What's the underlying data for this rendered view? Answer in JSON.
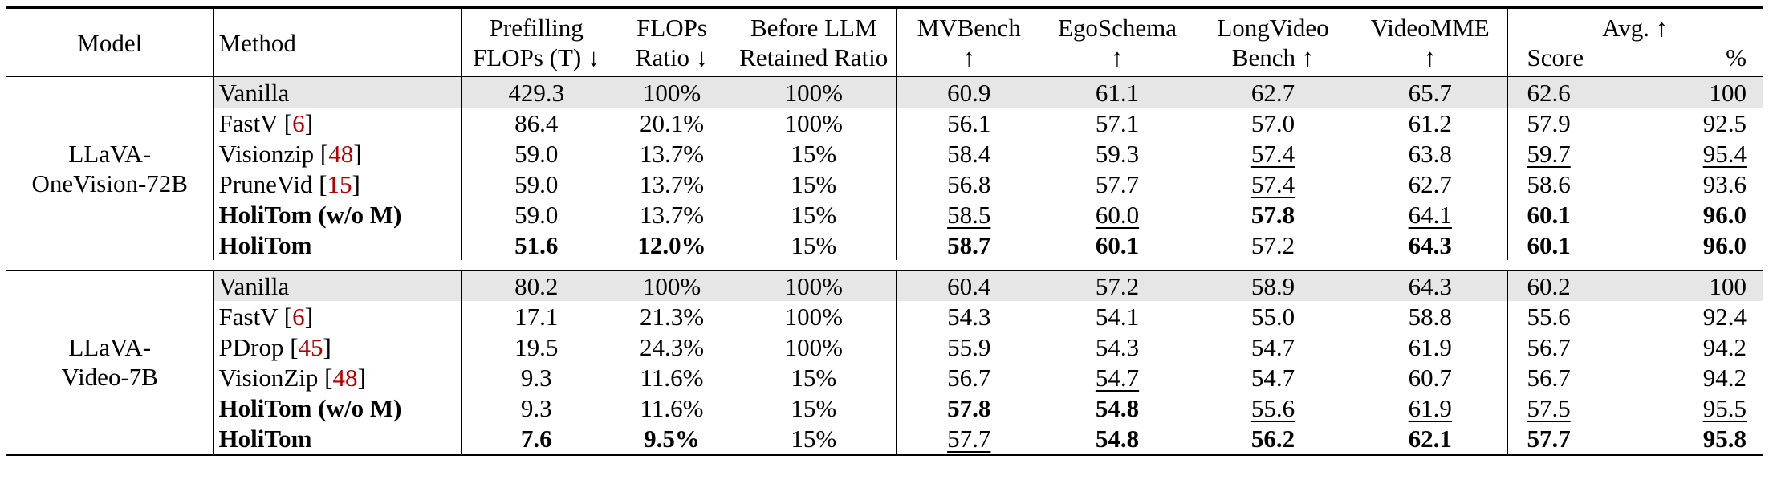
{
  "header": {
    "model": "Model",
    "method": "Method",
    "prefill_1": "Prefilling",
    "prefill_2": "FLOPs (T) ↓",
    "flops_1": "FLOPs",
    "flops_2": "Ratio ↓",
    "retain_1": "Before LLM",
    "retain_2": "Retained Ratio",
    "mv_1": "MVBench",
    "mv_2": "↑",
    "ego_1": "EgoSchema",
    "ego_2": "↑",
    "lv_1": "LongVideo",
    "lv_2": "Bench ↑",
    "vm_1": "VideoMME",
    "vm_2": "↑",
    "avg_1": "Avg. ↑",
    "avg_score": "Score",
    "avg_pct": "%"
  },
  "groups": [
    {
      "model_line1": "LLaVA-",
      "model_line2": "OneVision-72B",
      "rows": [
        {
          "method": "Vanilla",
          "cite": "",
          "prefill": "429.3",
          "flops": "100%",
          "retain": "100%",
          "mv": "60.9",
          "ego": "61.1",
          "lv": "62.7",
          "vm": "65.7",
          "score": "62.6",
          "pct": "100"
        },
        {
          "method": "FastV [",
          "cite": "6",
          "prefill": "86.4",
          "flops": "20.1%",
          "retain": "100%",
          "mv": "56.1",
          "ego": "57.1",
          "lv": "57.0",
          "vm": "61.2",
          "score": "57.9",
          "pct": "92.5"
        },
        {
          "method": "Visionzip [",
          "cite": "48",
          "prefill": "59.0",
          "flops": "13.7%",
          "retain": "15%",
          "mv": "58.4",
          "ego": "59.3",
          "lv": "57.4",
          "vm": "63.8",
          "score": "59.7",
          "pct": "95.4"
        },
        {
          "method": "PruneVid [",
          "cite": "15",
          "prefill": "59.0",
          "flops": "13.7%",
          "retain": "15%",
          "mv": "56.8",
          "ego": "57.7",
          "lv": "57.4",
          "vm": "62.7",
          "score": "58.6",
          "pct": "93.6"
        },
        {
          "method": "HoliTom (w/o M)",
          "cite": "",
          "prefill": "59.0",
          "flops": "13.7%",
          "retain": "15%",
          "mv": "58.5",
          "ego": "60.0",
          "lv": "57.8",
          "vm": "64.1",
          "score": "60.1",
          "pct": "96.0"
        },
        {
          "method": "HoliTom",
          "cite": "",
          "prefill": "51.6",
          "flops": "12.0%",
          "retain": "15%",
          "mv": "58.7",
          "ego": "60.1",
          "lv": "57.2",
          "vm": "64.3",
          "score": "60.1",
          "pct": "96.0"
        }
      ]
    },
    {
      "model_line1": "LLaVA-",
      "model_line2": "Video-7B",
      "rows": [
        {
          "method": "Vanilla",
          "cite": "",
          "prefill": "80.2",
          "flops": "100%",
          "retain": "100%",
          "mv": "60.4",
          "ego": "57.2",
          "lv": "58.9",
          "vm": "64.3",
          "score": "60.2",
          "pct": "100"
        },
        {
          "method": "FastV [",
          "cite": "6",
          "prefill": "17.1",
          "flops": "21.3%",
          "retain": "100%",
          "mv": "54.3",
          "ego": "54.1",
          "lv": "55.0",
          "vm": "58.8",
          "score": "55.6",
          "pct": "92.4"
        },
        {
          "method": "PDrop [",
          "cite": "45",
          "prefill": "19.5",
          "flops": "24.3%",
          "retain": "100%",
          "mv": "55.9",
          "ego": "54.3",
          "lv": "54.7",
          "vm": "61.9",
          "score": "56.7",
          "pct": "94.2"
        },
        {
          "method": "VisionZip [",
          "cite": "48",
          "prefill": "9.3",
          "flops": "11.6%",
          "retain": "15%",
          "mv": "56.7",
          "ego": "54.7",
          "lv": "54.7",
          "vm": "60.7",
          "score": "56.7",
          "pct": "94.2"
        },
        {
          "method": "HoliTom (w/o M)",
          "cite": "",
          "prefill": "9.3",
          "flops": "11.6%",
          "retain": "15%",
          "mv": "57.8",
          "ego": "54.8",
          "lv": "55.6",
          "vm": "61.9",
          "score": "57.5",
          "pct": "95.5"
        },
        {
          "method": "HoliTom",
          "cite": "",
          "prefill": "7.6",
          "flops": "9.5%",
          "retain": "15%",
          "mv": "57.7",
          "ego": "54.8",
          "lv": "56.2",
          "vm": "62.1",
          "score": "57.7",
          "pct": "95.8"
        }
      ]
    }
  ]
}
